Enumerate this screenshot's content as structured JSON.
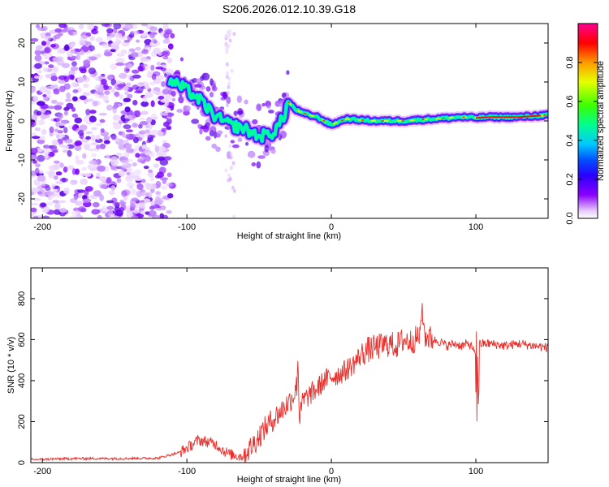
{
  "title": "S206.2026.012.10.39.G18",
  "chart_data": [
    {
      "type": "heatmap",
      "title": "S206.2026.012.10.39.G18",
      "xlabel": "Height of straight line (km)",
      "ylabel": "Frequency (Hz)",
      "xlim": [
        -208,
        150
      ],
      "ylim": [
        -25,
        25
      ],
      "xticks": [
        -200,
        -100,
        0,
        100
      ],
      "yticks": [
        -20,
        -10,
        0,
        10,
        20
      ],
      "colorbar": {
        "label": "Normalized spectral amplitude",
        "range": [
          0,
          1
        ],
        "ticks": [
          "0.0",
          "0.2",
          "0.4",
          "0.6",
          "0.8"
        ],
        "tick_values": [
          0,
          0.2,
          0.4,
          0.6,
          0.8
        ],
        "colors": [
          "#ffffff",
          "#7b00ff",
          "#0000ff",
          "#00ffff",
          "#00ff00",
          "#ffff00",
          "#ff0000",
          "#ff00aa"
        ]
      },
      "ridge": {
        "description": "frequency ridge vs height",
        "x": [
          -110,
          -100,
          -90,
          -80,
          -70,
          -60,
          -50,
          -40,
          -33,
          -30,
          -25,
          -20,
          -10,
          0,
          10,
          30,
          50,
          70,
          90,
          100,
          110,
          130,
          150
        ],
        "y": [
          10,
          8,
          5,
          1,
          -1,
          -2,
          -4,
          -3,
          1,
          5,
          3,
          2,
          1,
          -1,
          0.5,
          0,
          0,
          0.5,
          1,
          0.8,
          1,
          1,
          1.5
        ]
      }
    },
    {
      "type": "line",
      "xlabel": "Height of straight line (km)",
      "ylabel": "SNR (10 * v/v)",
      "xlim": [
        -208,
        150
      ],
      "ylim": [
        0,
        950
      ],
      "xticks": [
        -200,
        -100,
        0,
        100
      ],
      "yticks": [
        0,
        200,
        400,
        600,
        800
      ],
      "series": [
        {
          "name": "SNR",
          "color": "#e8302c",
          "x": [
            -208,
            -180,
            -150,
            -120,
            -105,
            -98,
            -92,
            -85,
            -80,
            -75,
            -70,
            -62,
            -55,
            -48,
            -42,
            -35,
            -30,
            -26,
            -24,
            -22,
            -20,
            -15,
            -10,
            -5,
            0,
            5,
            10,
            15,
            20,
            25,
            30,
            35,
            40,
            45,
            50,
            55,
            60,
            63,
            65,
            70,
            75,
            80,
            85,
            90,
            95,
            98,
            100,
            102,
            105,
            110,
            120,
            130,
            140,
            150
          ],
          "y": [
            15,
            20,
            20,
            22,
            50,
            80,
            110,
            100,
            90,
            60,
            40,
            30,
            80,
            150,
            200,
            250,
            290,
            330,
            380,
            200,
            300,
            330,
            360,
            400,
            420,
            430,
            450,
            480,
            520,
            550,
            560,
            570,
            580,
            570,
            600,
            590,
            610,
            650,
            620,
            600,
            590,
            570,
            580,
            570,
            580,
            560,
            500,
            580,
            580,
            580,
            570,
            580,
            570,
            560
          ]
        }
      ]
    }
  ]
}
